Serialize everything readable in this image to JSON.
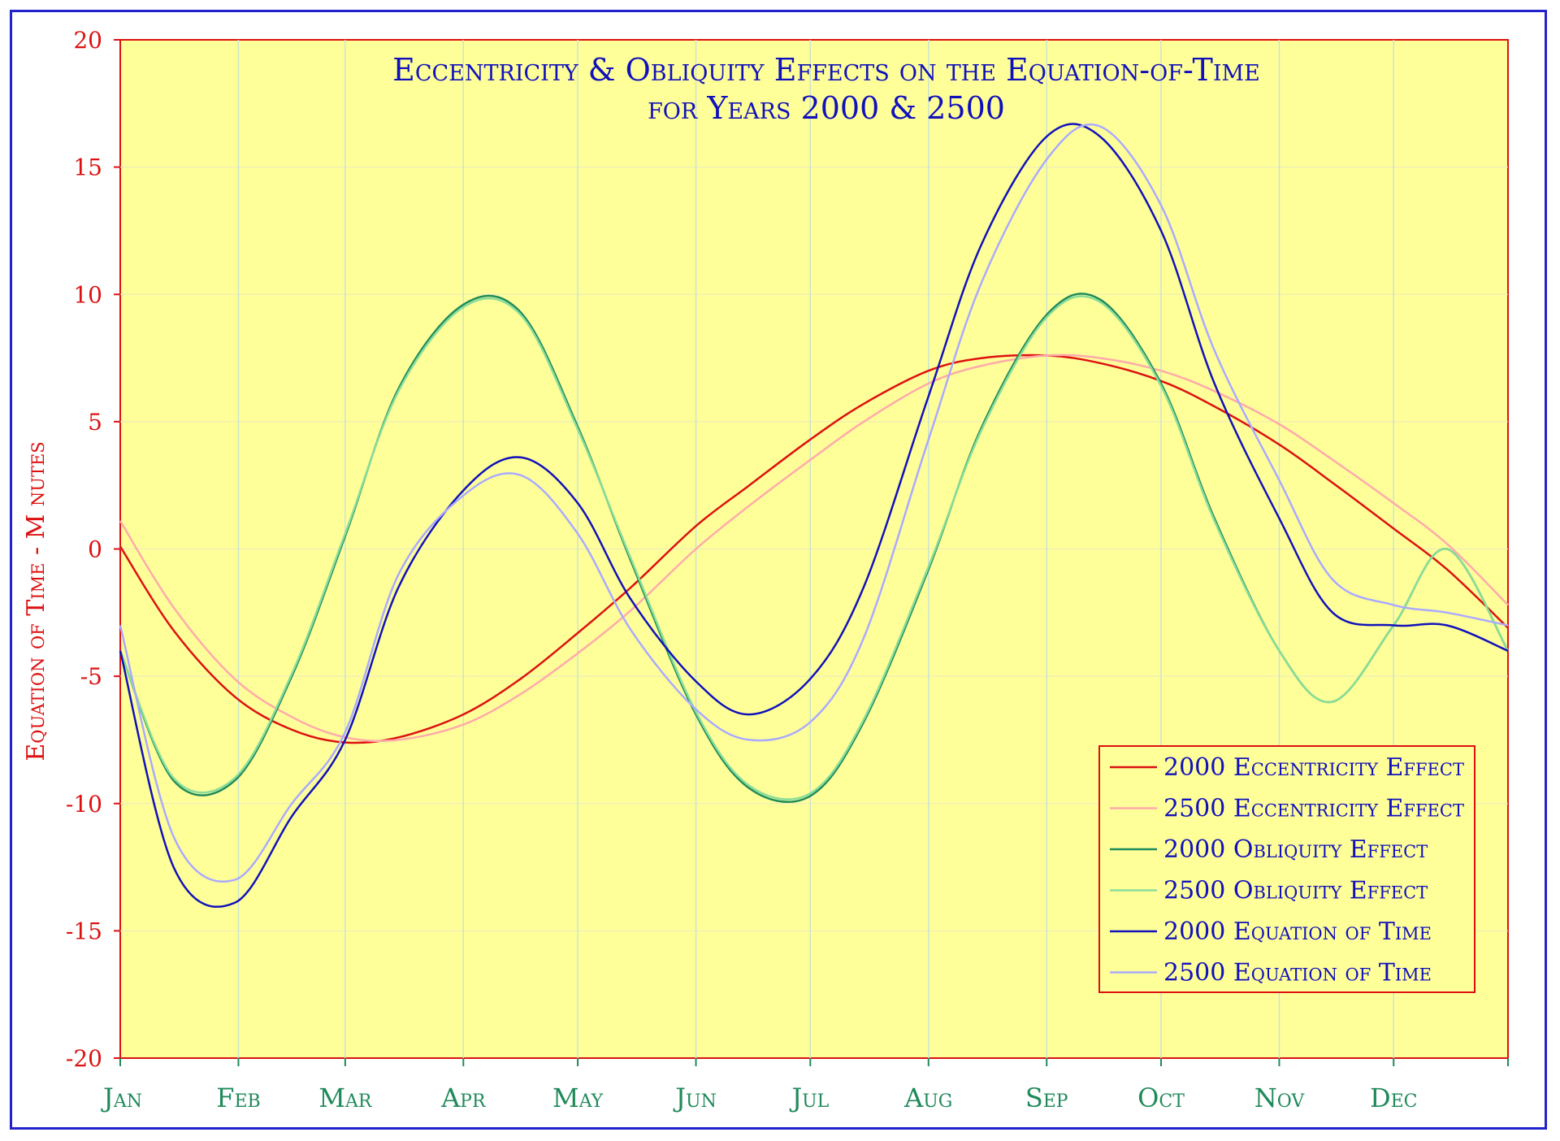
{
  "chart_data": {
    "type": "line",
    "title_lines": [
      "Eccentricity & Obliquity Effects on the Equation-of-Time",
      "for Years 2000 & 2500"
    ],
    "ylabel": "Equation of Time - M nutes",
    "xlabel": "",
    "ylim": [
      -20,
      20
    ],
    "yticks": [
      "20",
      "15",
      "10",
      "5",
      "0",
      "-5",
      "-10",
      "-15",
      "-20"
    ],
    "ytick_values": [
      20,
      15,
      10,
      5,
      0,
      -5,
      -10,
      -15,
      -20
    ],
    "categories": [
      "Jan",
      "Feb",
      "Mar",
      "Apr",
      "May",
      "Jun",
      "Jul",
      "Aug",
      "Sep",
      "Oct",
      "Nov",
      "Dec"
    ],
    "x": [
      1,
      15,
      31,
      46,
      60,
      74,
      91,
      106,
      121,
      135,
      152,
      166,
      182,
      196,
      213,
      227,
      244,
      258,
      274,
      288,
      305,
      319,
      335,
      349,
      365
    ],
    "grid": true,
    "legend_position": "bottom-right",
    "series": [
      {
        "name": "2000 Eccentricity Effect",
        "color": "#dd1111",
        "values": [
          0.1,
          -3.2,
          -5.8,
          -7.1,
          -7.6,
          -7.4,
          -6.5,
          -5.1,
          -3.3,
          -1.5,
          0.9,
          2.5,
          4.3,
          5.7,
          7.0,
          7.5,
          7.6,
          7.3,
          6.6,
          5.6,
          4.1,
          2.6,
          0.8,
          -0.8,
          -3.1
        ]
      },
      {
        "name": "2500 Eccentricity Effect",
        "color": "#ffaaaa",
        "values": [
          1.1,
          -2.3,
          -5.1,
          -6.6,
          -7.4,
          -7.5,
          -6.9,
          -5.7,
          -4.1,
          -2.4,
          0.0,
          1.7,
          3.5,
          5.0,
          6.5,
          7.2,
          7.6,
          7.5,
          7.0,
          6.2,
          4.9,
          3.5,
          1.8,
          0.2,
          -2.2
        ]
      },
      {
        "name": "2000 Obliquity Effect",
        "color": "#1f8a5a",
        "values": [
          -4.0,
          -9.1,
          -9.1,
          -5.0,
          0.5,
          6.3,
          9.6,
          9.3,
          4.8,
          -0.5,
          -6.5,
          -9.4,
          -9.7,
          -6.8,
          -0.8,
          4.8,
          9.2,
          9.8,
          6.5,
          1.2,
          -4.0,
          -6.0,
          -3.0,
          0.0,
          -4.0
        ]
      },
      {
        "name": "2500 Obliquity Effect",
        "color": "#88dd99",
        "values": [
          -4.0,
          -9.0,
          -9.0,
          -4.9,
          0.6,
          6.2,
          9.5,
          9.2,
          4.7,
          -0.4,
          -6.4,
          -9.3,
          -9.6,
          -6.7,
          -0.7,
          4.7,
          9.1,
          9.7,
          6.4,
          1.1,
          -4.0,
          -6.0,
          -3.0,
          0.0,
          -4.0
        ]
      },
      {
        "name": "2000 Equation of Time",
        "color": "#1111bb",
        "values": [
          -4.0,
          -12.5,
          -13.9,
          -10.5,
          -7.5,
          -1.5,
          2.3,
          3.6,
          1.8,
          -2.0,
          -5.2,
          -6.5,
          -5.1,
          -1.5,
          6.0,
          12.0,
          16.2,
          16.2,
          12.5,
          6.5,
          1.2,
          -2.5,
          -3.0,
          -3.0,
          -4.0
        ]
      },
      {
        "name": "2500 Equation of Time",
        "color": "#aaaaff",
        "values": [
          -3.0,
          -11.3,
          -13.0,
          -10.0,
          -7.2,
          -1.0,
          2.1,
          2.9,
          0.6,
          -3.2,
          -6.3,
          -7.5,
          -6.8,
          -3.5,
          4.3,
          10.5,
          15.3,
          16.6,
          13.5,
          7.8,
          2.7,
          -1.2,
          -2.2,
          -2.5,
          -3.0
        ]
      }
    ]
  }
}
